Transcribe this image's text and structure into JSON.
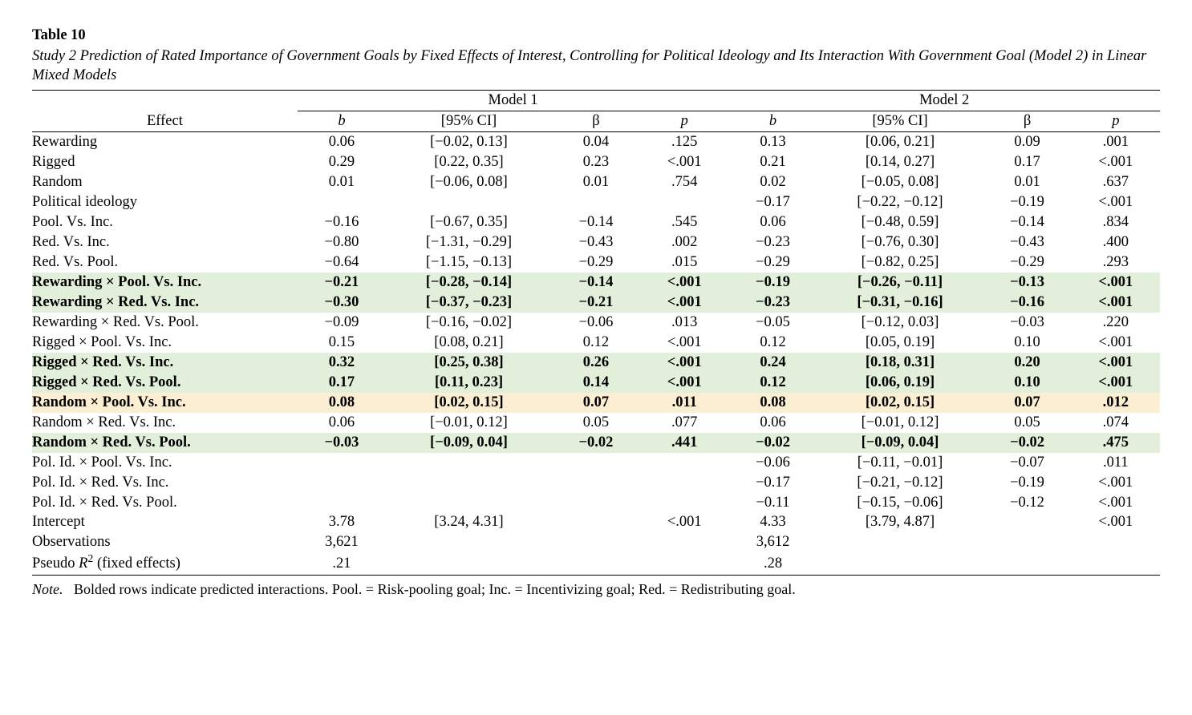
{
  "table_number": "Table 10",
  "caption": "Study 2 Prediction of Rated Importance of Government Goals by Fixed Effects of Interest, Controlling for Political Ideology and Its Interaction With Government Goal (Model 2) in Linear Mixed Models",
  "note_lead": "Note.",
  "note_body": "Bolded rows indicate predicted interactions. Pool. = Risk-pooling goal; Inc. = Incentivizing goal; Red. = Redistributing goal.",
  "header": {
    "effect": "Effect",
    "model1": "Model 1",
    "model2": "Model 2",
    "b": "b",
    "ci": "[95% CI]",
    "beta": "β",
    "p": "p"
  },
  "colors": {
    "highlight_green": "#e2efdb",
    "highlight_orange": "#fbeed2",
    "text": "#000000",
    "background": "#ffffff"
  },
  "typography": {
    "body_font": "Times New Roman",
    "body_size_pt": 14,
    "bold_rows_weight": "bold"
  },
  "layout": {
    "columns": [
      "effect",
      "m1_b",
      "m1_ci",
      "m1_beta",
      "m1_p",
      "m2_b",
      "m2_ci",
      "m2_beta",
      "m2_p"
    ],
    "col_widths_pct": [
      22,
      7,
      15,
      7,
      7,
      7,
      15,
      7,
      7
    ],
    "alignment": {
      "effect": "left",
      "others": "center"
    }
  },
  "rows": [
    {
      "id": "rewarding",
      "label": "Rewarding",
      "bold": false,
      "highlight": null,
      "m1": {
        "b": "0.06",
        "ci": "[−0.02, 0.13]",
        "beta": "0.04",
        "p": ".125"
      },
      "m2": {
        "b": "0.13",
        "ci": "[0.06, 0.21]",
        "beta": "0.09",
        "p": ".001"
      }
    },
    {
      "id": "rigged",
      "label": "Rigged",
      "bold": false,
      "highlight": null,
      "m1": {
        "b": "0.29",
        "ci": "[0.22, 0.35]",
        "beta": "0.23",
        "p": "<.001"
      },
      "m2": {
        "b": "0.21",
        "ci": "[0.14, 0.27]",
        "beta": "0.17",
        "p": "<.001"
      }
    },
    {
      "id": "random",
      "label": "Random",
      "bold": false,
      "highlight": null,
      "m1": {
        "b": "0.01",
        "ci": "[−0.06, 0.08]",
        "beta": "0.01",
        "p": ".754"
      },
      "m2": {
        "b": "0.02",
        "ci": "[−0.05, 0.08]",
        "beta": "0.01",
        "p": ".637"
      }
    },
    {
      "id": "politideo",
      "label": "Political ideology",
      "bold": false,
      "highlight": null,
      "m1": {
        "b": "",
        "ci": "",
        "beta": "",
        "p": ""
      },
      "m2": {
        "b": "−0.17",
        "ci": "[−0.22, −0.12]",
        "beta": "−0.19",
        "p": "<.001"
      }
    },
    {
      "id": "pool-inc",
      "label": "Pool. Vs. Inc.",
      "bold": false,
      "highlight": null,
      "m1": {
        "b": "−0.16",
        "ci": "[−0.67, 0.35]",
        "beta": "−0.14",
        "p": ".545"
      },
      "m2": {
        "b": "0.06",
        "ci": "[−0.48, 0.59]",
        "beta": "−0.14",
        "p": ".834"
      }
    },
    {
      "id": "red-inc",
      "label": "Red. Vs. Inc.",
      "bold": false,
      "highlight": null,
      "m1": {
        "b": "−0.80",
        "ci": "[−1.31, −0.29]",
        "beta": "−0.43",
        "p": ".002"
      },
      "m2": {
        "b": "−0.23",
        "ci": "[−0.76, 0.30]",
        "beta": "−0.43",
        "p": ".400"
      }
    },
    {
      "id": "red-pool",
      "label": "Red. Vs. Pool.",
      "bold": false,
      "highlight": null,
      "m1": {
        "b": "−0.64",
        "ci": "[−1.15, −0.13]",
        "beta": "−0.29",
        "p": ".015"
      },
      "m2": {
        "b": "−0.29",
        "ci": "[−0.82, 0.25]",
        "beta": "−0.29",
        "p": ".293"
      }
    },
    {
      "id": "rew-pool-inc",
      "label": "Rewarding × Pool. Vs. Inc.",
      "bold": true,
      "highlight": "green",
      "m1": {
        "b": "−0.21",
        "ci": "[−0.28, −0.14]",
        "beta": "−0.14",
        "p": "<.001"
      },
      "m2": {
        "b": "−0.19",
        "ci": "[−0.26, −0.11]",
        "beta": "−0.13",
        "p": "<.001"
      }
    },
    {
      "id": "rew-red-inc",
      "label": "Rewarding × Red. Vs. Inc.",
      "bold": true,
      "highlight": "green",
      "m1": {
        "b": "−0.30",
        "ci": "[−0.37, −0.23]",
        "beta": "−0.21",
        "p": "<.001"
      },
      "m2": {
        "b": "−0.23",
        "ci": "[−0.31, −0.16]",
        "beta": "−0.16",
        "p": "<.001"
      }
    },
    {
      "id": "rew-red-pool",
      "label": "Rewarding × Red. Vs. Pool.",
      "bold": false,
      "highlight": null,
      "m1": {
        "b": "−0.09",
        "ci": "[−0.16, −0.02]",
        "beta": "−0.06",
        "p": ".013"
      },
      "m2": {
        "b": "−0.05",
        "ci": "[−0.12, 0.03]",
        "beta": "−0.03",
        "p": ".220"
      }
    },
    {
      "id": "rig-pool-inc",
      "label": "Rigged × Pool. Vs. Inc.",
      "bold": false,
      "highlight": null,
      "m1": {
        "b": "0.15",
        "ci": "[0.08, 0.21]",
        "beta": "0.12",
        "p": "<.001"
      },
      "m2": {
        "b": "0.12",
        "ci": "[0.05, 0.19]",
        "beta": "0.10",
        "p": "<.001"
      }
    },
    {
      "id": "rig-red-inc",
      "label": "Rigged × Red. Vs. Inc.",
      "bold": true,
      "highlight": "green",
      "m1": {
        "b": "0.32",
        "ci": "[0.25, 0.38]",
        "beta": "0.26",
        "p": "<.001"
      },
      "m2": {
        "b": "0.24",
        "ci": "[0.18, 0.31]",
        "beta": "0.20",
        "p": "<.001"
      }
    },
    {
      "id": "rig-red-pool",
      "label": "Rigged × Red. Vs. Pool.",
      "bold": true,
      "highlight": "green",
      "m1": {
        "b": "0.17",
        "ci": "[0.11, 0.23]",
        "beta": "0.14",
        "p": "<.001"
      },
      "m2": {
        "b": "0.12",
        "ci": "[0.06, 0.19]",
        "beta": "0.10",
        "p": "<.001"
      }
    },
    {
      "id": "ran-pool-inc",
      "label": "Random × Pool. Vs. Inc.",
      "bold": true,
      "highlight": "orange",
      "m1": {
        "b": "0.08",
        "ci": "[0.02, 0.15]",
        "beta": "0.07",
        "p": ".011"
      },
      "m2": {
        "b": "0.08",
        "ci": "[0.02, 0.15]",
        "beta": "0.07",
        "p": ".012"
      }
    },
    {
      "id": "ran-red-inc",
      "label": "Random × Red. Vs. Inc.",
      "bold": false,
      "highlight": null,
      "m1": {
        "b": "0.06",
        "ci": "[−0.01, 0.12]",
        "beta": "0.05",
        "p": ".077"
      },
      "m2": {
        "b": "0.06",
        "ci": "[−0.01, 0.12]",
        "beta": "0.05",
        "p": ".074"
      }
    },
    {
      "id": "ran-red-pool",
      "label": "Random × Red. Vs. Pool.",
      "bold": true,
      "highlight": "green",
      "m1": {
        "b": "−0.03",
        "ci": "[−0.09, 0.04]",
        "beta": "−0.02",
        "p": ".441"
      },
      "m2": {
        "b": "−0.02",
        "ci": "[−0.09, 0.04]",
        "beta": "−0.02",
        "p": ".475"
      }
    },
    {
      "id": "pid-pool-inc",
      "label": "Pol. Id. × Pool. Vs. Inc.",
      "bold": false,
      "highlight": null,
      "m1": {
        "b": "",
        "ci": "",
        "beta": "",
        "p": ""
      },
      "m2": {
        "b": "−0.06",
        "ci": "[−0.11, −0.01]",
        "beta": "−0.07",
        "p": ".011"
      }
    },
    {
      "id": "pid-red-inc",
      "label": "Pol. Id. × Red. Vs. Inc.",
      "bold": false,
      "highlight": null,
      "m1": {
        "b": "",
        "ci": "",
        "beta": "",
        "p": ""
      },
      "m2": {
        "b": "−0.17",
        "ci": "[−0.21, −0.12]",
        "beta": "−0.19",
        "p": "<.001"
      }
    },
    {
      "id": "pid-red-pool",
      "label": "Pol. Id. × Red. Vs. Pool.",
      "bold": false,
      "highlight": null,
      "m1": {
        "b": "",
        "ci": "",
        "beta": "",
        "p": ""
      },
      "m2": {
        "b": "−0.11",
        "ci": "[−0.15, −0.06]",
        "beta": "−0.12",
        "p": "<.001"
      }
    },
    {
      "id": "intercept",
      "label": "Intercept",
      "bold": false,
      "highlight": null,
      "m1": {
        "b": "3.78",
        "ci": "[3.24, 4.31]",
        "beta": "",
        "p": "<.001"
      },
      "m2": {
        "b": "4.33",
        "ci": "[3.79, 4.87]",
        "beta": "",
        "p": "<.001"
      }
    },
    {
      "id": "obs",
      "label": "Observations",
      "bold": false,
      "highlight": null,
      "m1": {
        "b": "3,621",
        "ci": "",
        "beta": "",
        "p": ""
      },
      "m2": {
        "b": "3,612",
        "ci": "",
        "beta": "",
        "p": ""
      }
    },
    {
      "id": "pseudo-r2",
      "label_html": "Pseudo <i>R</i><sup>2</sup> (fixed effects)",
      "label": "Pseudo R2 (fixed effects)",
      "bold": false,
      "highlight": null,
      "m1": {
        "b": ".21",
        "ci": "",
        "beta": "",
        "p": ""
      },
      "m2": {
        "b": ".28",
        "ci": "",
        "beta": "",
        "p": ""
      }
    }
  ]
}
